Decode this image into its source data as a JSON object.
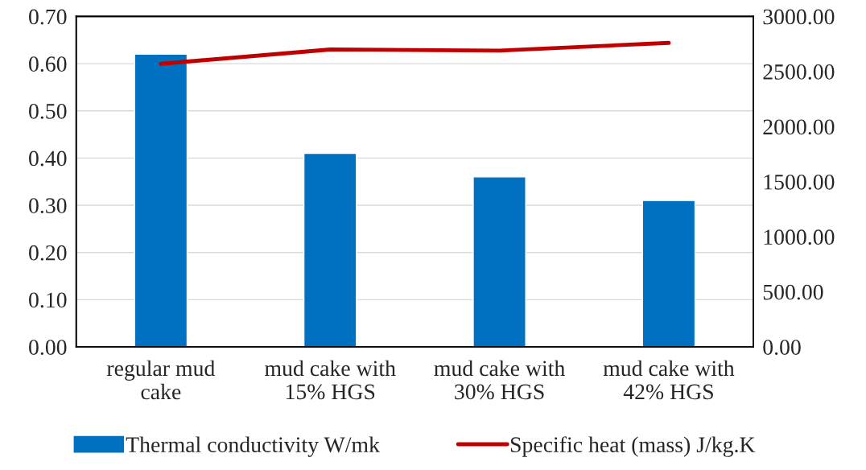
{
  "chart_data": {
    "type": "bar",
    "categories": [
      "regular mud\ncake",
      "mud cake with\n15% HGS",
      "mud cake with\n30% HGS",
      "mud cake with\n42% HGS"
    ],
    "series": [
      {
        "name": "Thermal conductivity W/mk",
        "color": "#0070c0",
        "values": [
          0.62,
          0.41,
          0.36,
          0.31
        ]
      },
      {
        "name": "Specific heat (mass) J/kg.K",
        "color": "#c00000",
        "type": "line",
        "axis": "y2",
        "values": [
          2570,
          2700,
          2690,
          2760
        ]
      }
    ],
    "ylim": [
      0,
      0.7
    ],
    "yticks": [
      {
        "value": 0,
        "label": "0.00"
      },
      {
        "value": 0.1,
        "label": "0.10"
      },
      {
        "value": 0.2,
        "label": "0.20"
      },
      {
        "value": 0.3,
        "label": "0.30"
      },
      {
        "value": 0.4,
        "label": "0.40"
      },
      {
        "value": 0.5,
        "label": "0.50"
      },
      {
        "value": 0.6,
        "label": "0.60"
      },
      {
        "value": 0.7,
        "label": "0.70"
      }
    ],
    "y2lim": [
      0,
      3000
    ],
    "y2ticks": [
      {
        "value": 0,
        "label": "0.00"
      },
      {
        "value": 500,
        "label": "500.00"
      },
      {
        "value": 1000,
        "label": "1000.00"
      },
      {
        "value": 1500,
        "label": "1500.00"
      },
      {
        "value": 2000,
        "label": "2000.00"
      },
      {
        "value": 2500,
        "label": "2500.00"
      },
      {
        "value": 3000,
        "label": "3000.00"
      }
    ],
    "grid": "y",
    "legend": "bottom"
  }
}
